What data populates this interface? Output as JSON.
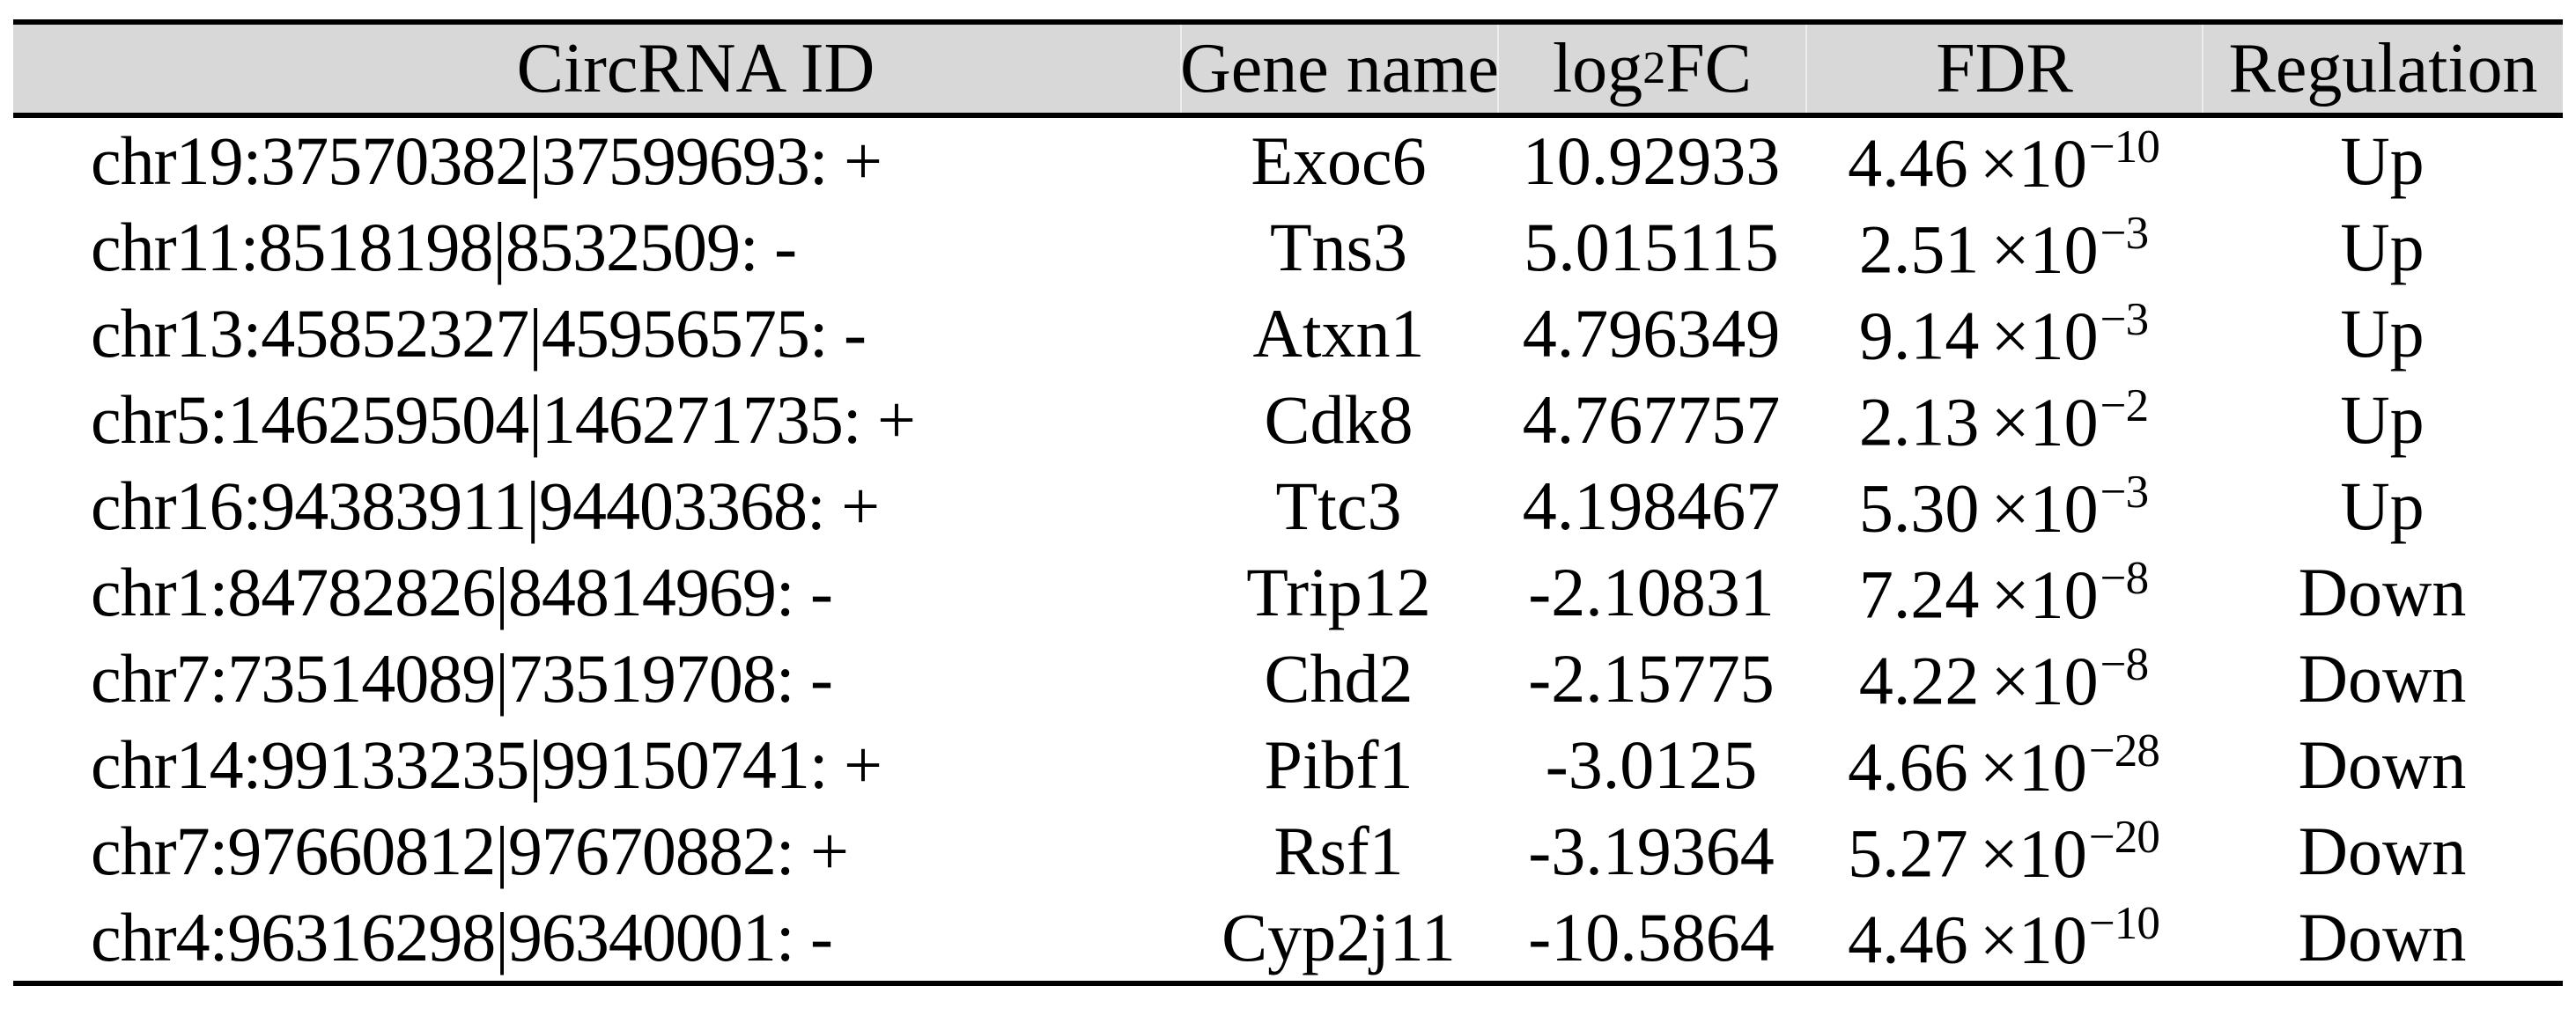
{
  "table": {
    "style": {
      "header_bg": "#d8d8d8",
      "border_color": "#000000",
      "text_color": "#000000"
    },
    "header": {
      "circrna_id": "CircRNA ID",
      "gene_name": "Gene name",
      "log_fc": {
        "prefix": "log",
        "sub": "2",
        "suffix": "FC"
      },
      "fdr": "FDR",
      "regulation": "Regulation"
    },
    "fdr_times": "×10",
    "rows": [
      {
        "circrna_id": "chr19:37570382|37599693: +",
        "gene_name": "Exoc6",
        "log2fc": "10.92933",
        "fdr_mantissa": "4.46",
        "fdr_exponent": "−10",
        "regulation": "Up"
      },
      {
        "circrna_id": "chr11:8518198|8532509: -",
        "gene_name": "Tns3",
        "log2fc": "5.015115",
        "fdr_mantissa": "2.51",
        "fdr_exponent": "−3",
        "regulation": "Up"
      },
      {
        "circrna_id": "chr13:45852327|45956575: -",
        "gene_name": "Atxn1",
        "log2fc": "4.796349",
        "fdr_mantissa": "9.14",
        "fdr_exponent": "−3",
        "regulation": "Up"
      },
      {
        "circrna_id": "chr5:146259504|146271735: +",
        "gene_name": "Cdk8",
        "log2fc": "4.767757",
        "fdr_mantissa": "2.13",
        "fdr_exponent": "−2",
        "regulation": "Up"
      },
      {
        "circrna_id": "chr16:94383911|94403368: +",
        "gene_name": "Ttc3",
        "log2fc": "4.198467",
        "fdr_mantissa": "5.30",
        "fdr_exponent": "−3",
        "regulation": "Up"
      },
      {
        "circrna_id": "chr1:84782826|84814969: -",
        "gene_name": "Trip12",
        "log2fc": "-2.10831",
        "fdr_mantissa": "7.24",
        "fdr_exponent": "−8",
        "regulation": "Down"
      },
      {
        "circrna_id": "chr7:73514089|73519708: -",
        "gene_name": "Chd2",
        "log2fc": "-2.15775",
        "fdr_mantissa": "4.22",
        "fdr_exponent": "−8",
        "regulation": "Down"
      },
      {
        "circrna_id": "chr14:99133235|99150741: +",
        "gene_name": "Pibf1",
        "log2fc": "-3.0125",
        "fdr_mantissa": "4.66",
        "fdr_exponent": "−28",
        "regulation": "Down"
      },
      {
        "circrna_id": "chr7:97660812|97670882: +",
        "gene_name": "Rsf1",
        "log2fc": "-3.19364",
        "fdr_mantissa": "5.27",
        "fdr_exponent": "−20",
        "regulation": "Down"
      },
      {
        "circrna_id": "chr4:96316298|96340001: -",
        "gene_name": "Cyp2j11",
        "log2fc": "-10.5864",
        "fdr_mantissa": "4.46",
        "fdr_exponent": "−10",
        "regulation": "Down"
      }
    ]
  }
}
